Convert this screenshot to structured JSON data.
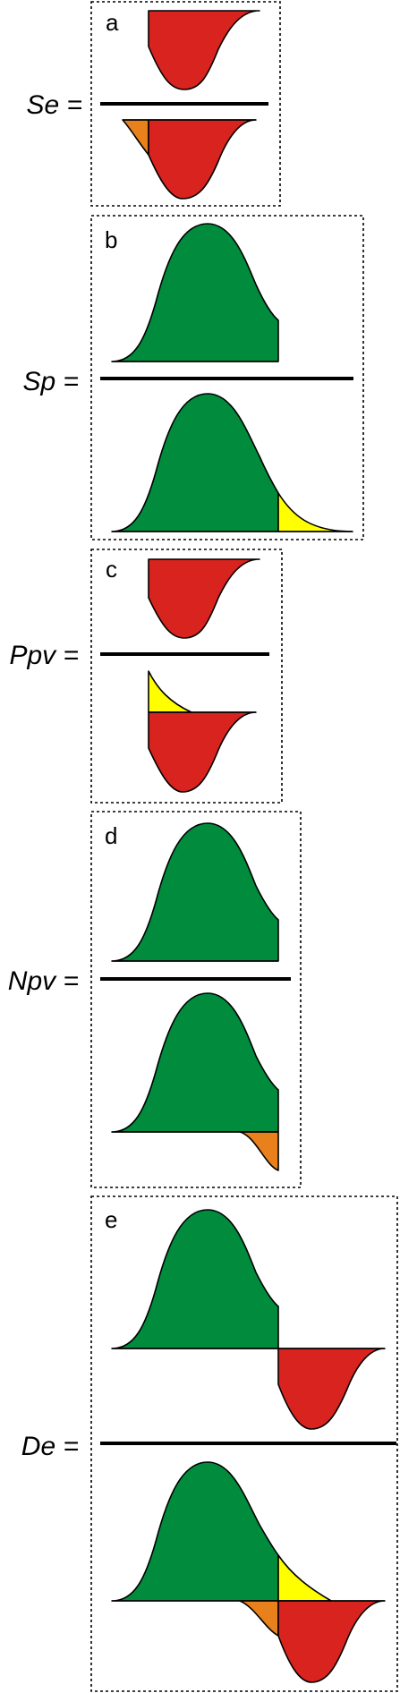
{
  "colors": {
    "red": "#d9231f",
    "green": "#008c3c",
    "orange": "#e8801c",
    "yellow": "#ffff00",
    "stroke": "#000000"
  },
  "panels": [
    {
      "letter": "a",
      "label": "Se ="
    },
    {
      "letter": "b",
      "label": "Sp ="
    },
    {
      "letter": "c",
      "label": "Ppv ="
    },
    {
      "letter": "d",
      "label": "Npv ="
    },
    {
      "letter": "e",
      "label": "De ="
    }
  ]
}
